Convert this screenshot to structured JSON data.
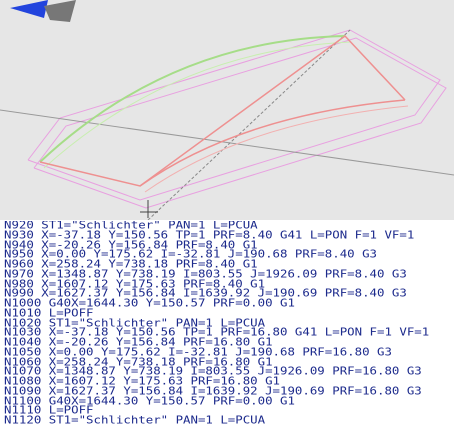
{
  "program_lines": [
    "N920 ST1=\"Schlichter\" PAN=1 L=PCUA",
    "N930 X=-37.18 Y=150.56 TP=1 PRF=8.40 G41 L=PON F=1 VF=1",
    "N940 X=-20.26 Y=156.84 PRF=8.40 G1",
    "N950 X=0.00 Y=175.62 I=-32.81 J=190.68 PRF=8.40 G3",
    "N960 X=258.24 Y=738.18 PRF=8.40 G1",
    "N970 X=1348.87 Y=738.19 I=803.55 J=1926.09 PRF=8.40 G3",
    "N980 X=1607.12 Y=175.63 PRF=8.40 G1",
    "N990 X=1627.37 Y=156.84 I=1639.92 J=190.69 PRF=8.40 G3",
    "N1000 G40X=1644.30 Y=150.57 PRF=0.00 G1",
    "N1010 L=POFF",
    "N1020 ST1=\"Schlichter\" PAN=1 L=PCUA",
    "N1030 X=-37.18 Y=150.56 TP=1 PRF=16.80 G41 L=PON F=1 VF=1",
    "N1040 X=-20.26 Y=156.84 PRF=16.80 G1",
    "N1050 X=0.00 Y=175.62 I=-32.81 J=190.68 PRF=16.80 G3",
    "N1060 X=258.24 Y=738.18 PRF=16.80 G1",
    "N1070 X=1348.87 Y=738.19 I=803.55 J=1926.09 PRF=16.80 G3",
    "N1080 X=1607.12 Y=175.63 PRF=16.80 G1",
    "N1090 X=1627.37 Y=156.84 I=1639.92 J=190.69 PRF=16.80 G3",
    "N1100 G40X=1644.30 Y=150.57 PRF=0.00 G1",
    "N1110 L=POFF",
    "N1120 ST1=\"Schlichter\" PAN=1 L=PCUA"
  ]
}
